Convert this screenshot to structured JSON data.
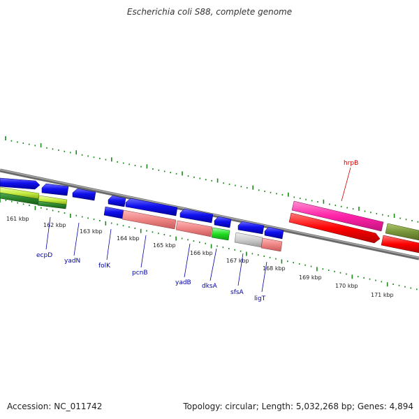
{
  "title": "Escherichia coli S88, complete genome",
  "accession": "Accession: NC_011742",
  "summary": "Topology: circular; Length: 5,032,268 bp; Genes: 4,894",
  "colors": {
    "backbone": "#808080",
    "ticks": "#1a8a1a",
    "gene_label": "#0000aa",
    "highlight_label": "#cc0000"
  },
  "scale": {
    "unit": "kbp",
    "labels": [
      "161 kbp",
      "162 kbp",
      "163 kbp",
      "164 kbp",
      "165 kbp",
      "166 kbp",
      "167 kbp",
      "168 kbp",
      "169 kbp",
      "170 kbp",
      "171 kbp"
    ]
  },
  "gene_labels": [
    {
      "name": "ecpD",
      "color": "#0000aa"
    },
    {
      "name": "yadN",
      "color": "#0000aa"
    },
    {
      "name": "folK",
      "color": "#0000aa"
    },
    {
      "name": "pcnB",
      "color": "#0000aa"
    },
    {
      "name": "yadB",
      "color": "#0000aa"
    },
    {
      "name": "dksA",
      "color": "#0000aa"
    },
    {
      "name": "sfsA",
      "color": "#0000aa"
    },
    {
      "name": "ligT",
      "color": "#0000aa"
    },
    {
      "name": "hrpB",
      "color": "#cc0000"
    }
  ]
}
